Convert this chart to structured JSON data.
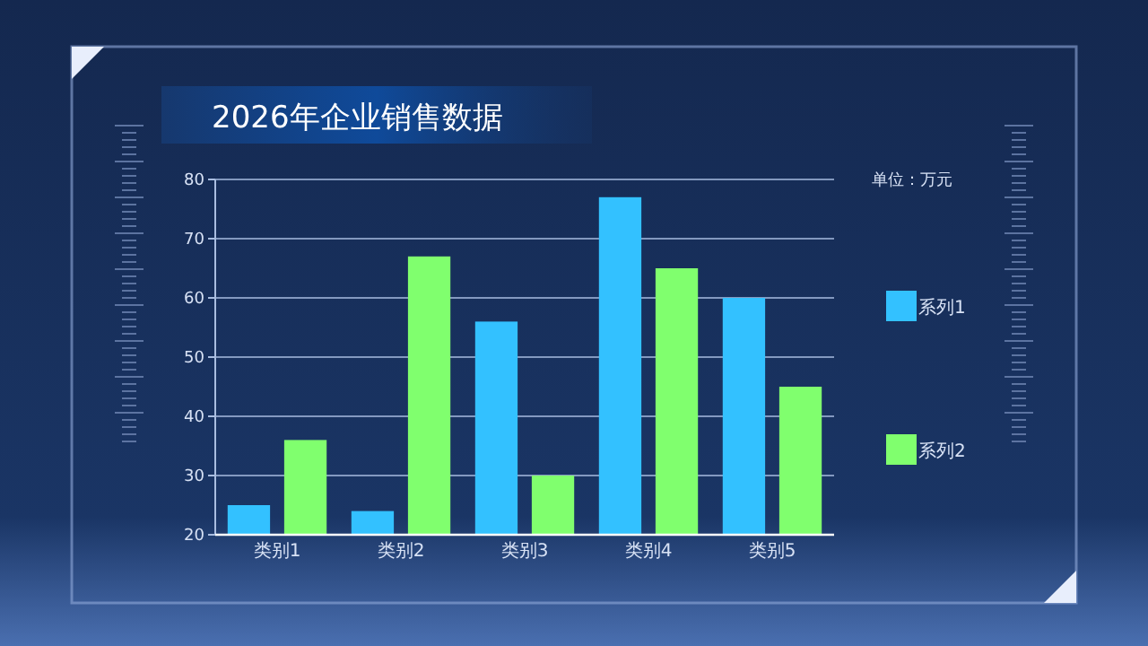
{
  "chart_data": {
    "type": "bar",
    "title": "2026年企业销售数据",
    "annotations": [
      "单位：万元"
    ],
    "categories": [
      "类别1",
      "类别2",
      "类别3",
      "类别4",
      "类别5"
    ],
    "series": [
      {
        "name": "系列1",
        "color": "#33c1ff",
        "values": [
          25,
          24,
          56,
          77,
          60
        ]
      },
      {
        "name": "系列2",
        "color": "#80ff6e",
        "values": [
          36,
          67,
          30,
          65,
          45
        ]
      }
    ],
    "ylim": [
      20,
      80
    ],
    "yticks": [
      20,
      30,
      40,
      50,
      60,
      70,
      80
    ],
    "grid": "y",
    "legend": "right"
  }
}
